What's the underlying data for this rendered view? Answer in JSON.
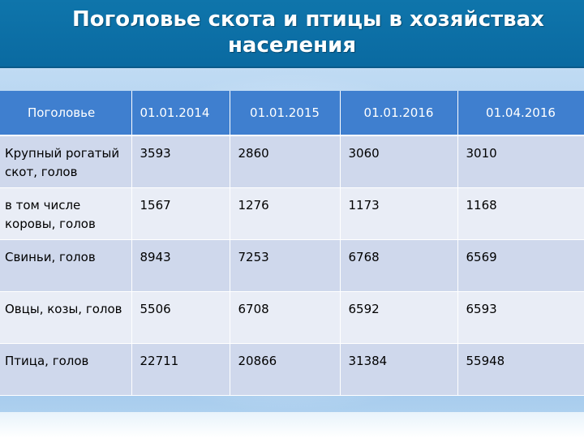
{
  "title": {
    "line1": "Поголовье скота и птицы в хозяйствах",
    "line2": "населения"
  },
  "table": {
    "headers": [
      "Поголовье",
      "01.01.2014",
      "01.01.2015",
      "01.01.2016",
      "01.04.2016"
    ],
    "rows": [
      {
        "label": "Крупный рогатый скот, голов",
        "values": [
          "3593",
          "2860",
          "3060",
          "3010"
        ]
      },
      {
        "label": "в том числе коровы, голов",
        "values": [
          "1567",
          "1276",
          "1173",
          "1168"
        ]
      },
      {
        "label": "Свиньи, голов",
        "values": [
          "8943",
          "7253",
          "6768",
          "6569"
        ]
      },
      {
        "label": "Овцы, козы, голов",
        "values": [
          "5506",
          "6708",
          "6592",
          "6593"
        ]
      },
      {
        "label": "Птица, голов",
        "values": [
          "22711",
          "20866",
          "31384",
          "55948"
        ]
      }
    ]
  },
  "colors": {
    "title_bar": "#0f75ab",
    "header_row": "#3f7fcf",
    "row_odd": "#cfd8ec",
    "row_even": "#e9edf6"
  }
}
